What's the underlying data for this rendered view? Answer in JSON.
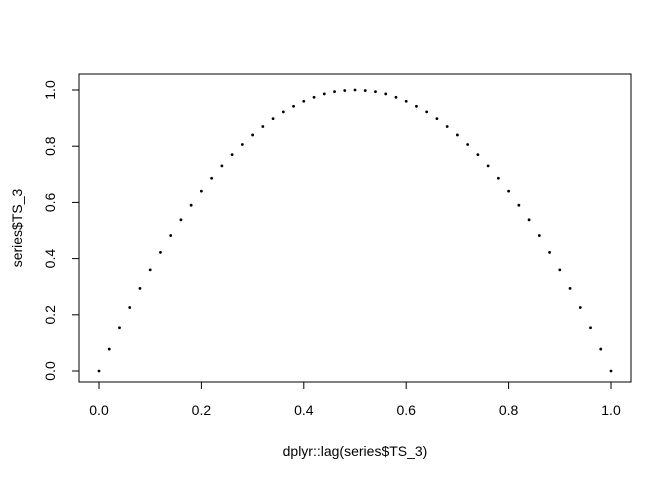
{
  "chart_data": {
    "type": "scatter",
    "title": "",
    "xlabel": "dplyr::lag(series$TS_3)",
    "ylabel": "series$TS_3",
    "xlim": [
      0,
      1
    ],
    "ylim": [
      0,
      1
    ],
    "x_ticks": [
      0.0,
      0.2,
      0.4,
      0.6,
      0.8,
      1.0
    ],
    "y_ticks": [
      0.0,
      0.2,
      0.4,
      0.6,
      0.8,
      1.0
    ],
    "x_tick_labels": [
      "0.0",
      "0.2",
      "0.4",
      "0.6",
      "0.8",
      "1.0"
    ],
    "y_tick_labels": [
      "0.0",
      "0.2",
      "0.4",
      "0.6",
      "0.8",
      "1.0"
    ],
    "grid": false,
    "marker_color": "#000000",
    "series": [
      {
        "x": [
          0.0,
          0.02,
          0.04,
          0.06,
          0.08,
          0.1,
          0.12,
          0.14,
          0.16,
          0.18,
          0.2,
          0.22,
          0.24,
          0.26,
          0.28,
          0.3,
          0.32,
          0.34,
          0.36,
          0.38,
          0.4,
          0.42,
          0.44,
          0.46,
          0.48,
          0.5,
          0.52,
          0.54,
          0.56,
          0.58,
          0.6,
          0.62,
          0.64,
          0.66,
          0.68,
          0.7,
          0.72,
          0.74,
          0.76,
          0.78,
          0.8,
          0.82,
          0.84,
          0.86,
          0.88,
          0.9,
          0.92,
          0.94,
          0.96,
          0.98,
          1.0
        ],
        "y": [
          0.0,
          0.078,
          0.154,
          0.226,
          0.294,
          0.36,
          0.422,
          0.482,
          0.538,
          0.59,
          0.64,
          0.686,
          0.73,
          0.77,
          0.806,
          0.84,
          0.87,
          0.898,
          0.922,
          0.942,
          0.96,
          0.974,
          0.986,
          0.994,
          0.998,
          1.0,
          0.998,
          0.994,
          0.986,
          0.974,
          0.96,
          0.942,
          0.922,
          0.898,
          0.87,
          0.84,
          0.806,
          0.77,
          0.73,
          0.686,
          0.64,
          0.59,
          0.538,
          0.482,
          0.422,
          0.36,
          0.294,
          0.226,
          0.154,
          0.078,
          0.0
        ]
      }
    ]
  }
}
